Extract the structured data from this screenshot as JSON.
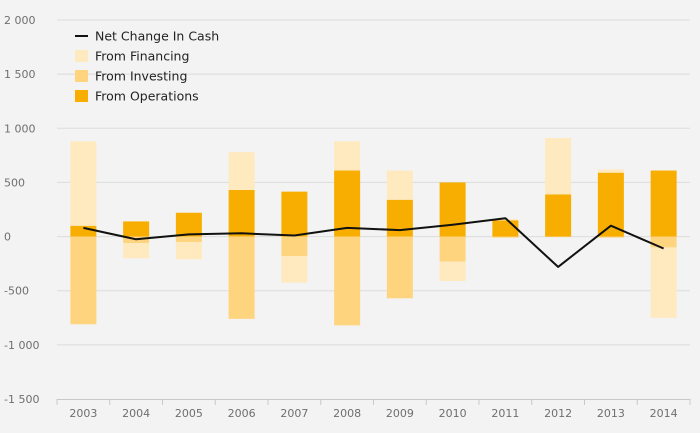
{
  "colors": {
    "background": "#f3f3f3",
    "grid": "#dcdcdc",
    "financing": "#ffe9bf",
    "investing": "#ffd47f",
    "operations": "#f7ae00",
    "net_line": "#111111"
  },
  "chart_data": {
    "type": "bar",
    "stacked": true,
    "categories": [
      "2003",
      "2004",
      "2005",
      "2006",
      "2007",
      "2008",
      "2009",
      "2010",
      "2011",
      "2012",
      "2013",
      "2014"
    ],
    "ylim": [
      -1500,
      2000
    ],
    "yticks": [
      -1500,
      -1000,
      -500,
      0,
      500,
      1000,
      1500,
      2000
    ],
    "ytick_labels": [
      "-1 500",
      "-1 000",
      "-500",
      "0",
      "500",
      "1 000",
      "1 500",
      "2 000"
    ],
    "legend_position": "top-left",
    "grid": true,
    "series": [
      {
        "name": "From Operations",
        "type": "bar",
        "values": [
          100,
          140,
          220,
          430,
          415,
          610,
          340,
          500,
          150,
          390,
          590,
          610
        ]
      },
      {
        "name": "From Investing",
        "type": "bar",
        "values": [
          -810,
          -60,
          -50,
          -760,
          -180,
          -820,
          -570,
          -230,
          -10,
          -5,
          -10,
          -100
        ]
      },
      {
        "name": "From Financing",
        "type": "bar",
        "values": [
          780,
          -140,
          -160,
          350,
          -245,
          270,
          270,
          -180,
          10,
          520,
          30,
          -650
        ]
      },
      {
        "name": "Net Change In Cash",
        "type": "line",
        "values": [
          80,
          -25,
          20,
          30,
          10,
          80,
          60,
          110,
          170,
          -280,
          100,
          -110
        ]
      }
    ]
  }
}
